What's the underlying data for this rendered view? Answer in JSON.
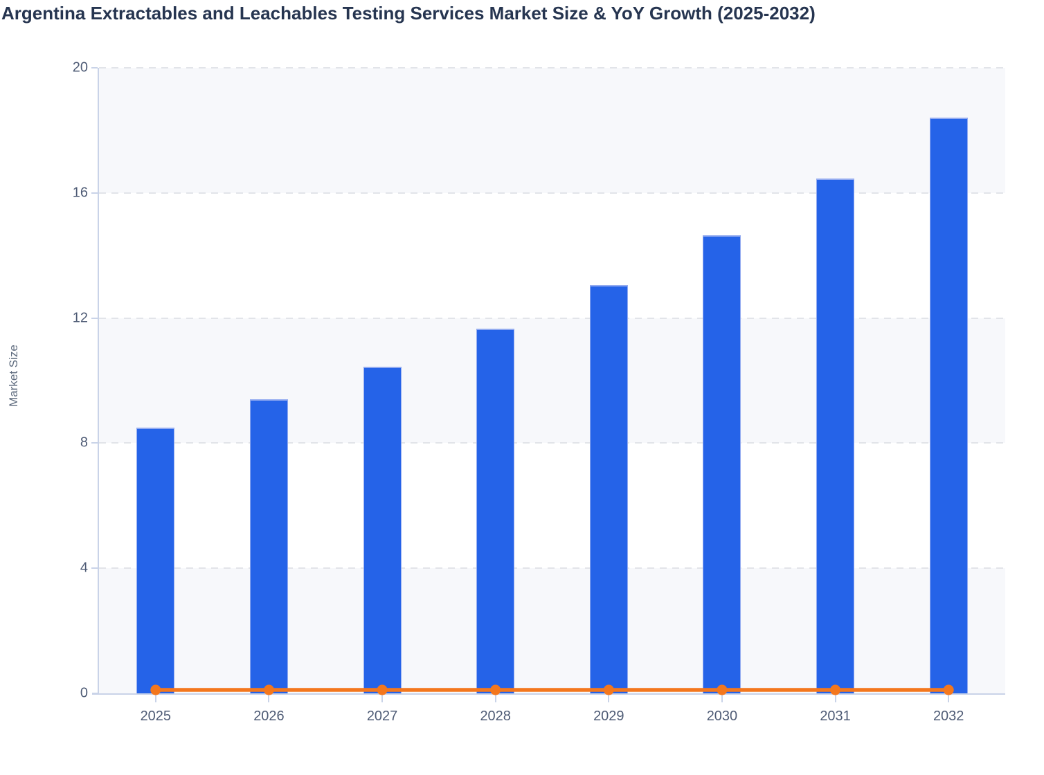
{
  "title": "Argentina Extractables and Leachables Testing Services Market Size & YoY Growth (2025-2032)",
  "chart_data": {
    "type": "bar",
    "subtype": "bar-and-line-combo",
    "title": "Argentina Extractables and Leachables Testing Services Market Size & YoY Growth (2025-2032)",
    "categories": [
      "2025",
      "2026",
      "2027",
      "2028",
      "2029",
      "2030",
      "2031",
      "2032"
    ],
    "series": [
      {
        "name": "Market Size",
        "type": "bar",
        "color": "#2563e8",
        "values": [
          8.5,
          9.4,
          10.45,
          11.65,
          13.05,
          14.65,
          16.45,
          18.4
        ]
      },
      {
        "name": "YoY Growth",
        "type": "line",
        "color": "#f4771d",
        "values": [
          0.11,
          0.11,
          0.11,
          0.11,
          0.11,
          0.11,
          0.11,
          0.11
        ]
      }
    ],
    "xlabel": "",
    "ylabel": "Market Size",
    "ylim": [
      0,
      20
    ],
    "yticks": [
      0,
      4,
      8,
      12,
      16,
      20
    ],
    "grid": "horizontal-dashed",
    "plot_bands": "alternating-from-bottom",
    "legend": "none"
  },
  "colors": {
    "bar": "#2563e8",
    "bar_border": "#93abf0",
    "line": "#f4771d",
    "title": "#263550",
    "tick_label": "#4e5b75",
    "axis_title": "#5d6a7d",
    "axis_line": "#c9d3e8",
    "gridline": "#e2e4e9",
    "band": "#f7f8fb",
    "background": "#ffffff"
  }
}
